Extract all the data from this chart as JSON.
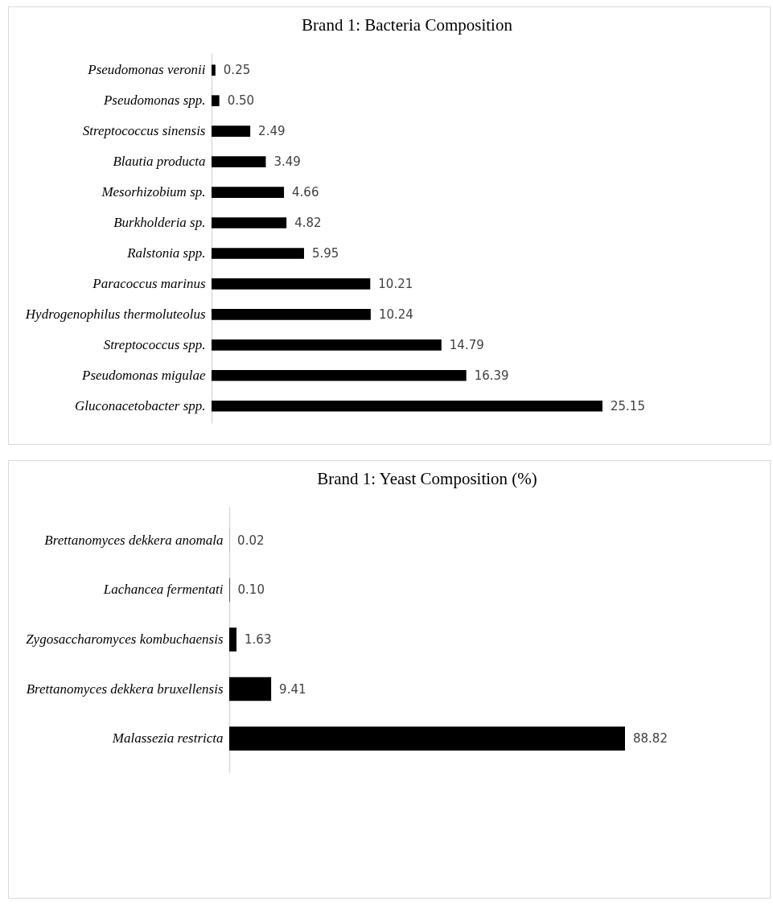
{
  "chart_data": [
    {
      "type": "bar",
      "orientation": "horizontal",
      "title": "Brand 1: Bacteria Composition",
      "color": "#000000",
      "categories": [
        "Pseudomonas veronii",
        "Pseudomonas spp.",
        "Streptococcus sinensis",
        "Blautia producta",
        "Mesorhizobium sp.",
        "Burkholderia sp.",
        "Ralstonia spp.",
        "Paracoccus marinus",
        "Hydrogenophilus thermoluteolus",
        "Streptococcus spp.",
        "Pseudomonas migulae",
        "Gluconacetobacter spp."
      ],
      "values": [
        0.25,
        0.5,
        2.49,
        3.49,
        4.66,
        4.82,
        5.95,
        10.21,
        10.24,
        14.79,
        16.39,
        25.15
      ],
      "value_labels": [
        "0.25",
        "0.50",
        "2.49",
        "3.49",
        "4.66",
        "4.82",
        "5.95",
        "10.21",
        "10.24",
        "14.79",
        "16.39",
        "25.15"
      ]
    },
    {
      "type": "bar",
      "orientation": "horizontal",
      "title": "Brand 1: Yeast Composition (%)",
      "color": "#000000",
      "categories": [
        "Brettanomyces dekkera anomala",
        "Lachancea fermentati",
        "Zygosaccharomyces kombuchaensis",
        "Brettanomyces dekkera bruxellensis",
        "Malassezia restricta"
      ],
      "values": [
        0.02,
        0.1,
        1.63,
        9.41,
        88.82
      ],
      "value_labels": [
        "0.02",
        "0.10",
        "1.63",
        "9.41",
        "88.82"
      ]
    }
  ]
}
